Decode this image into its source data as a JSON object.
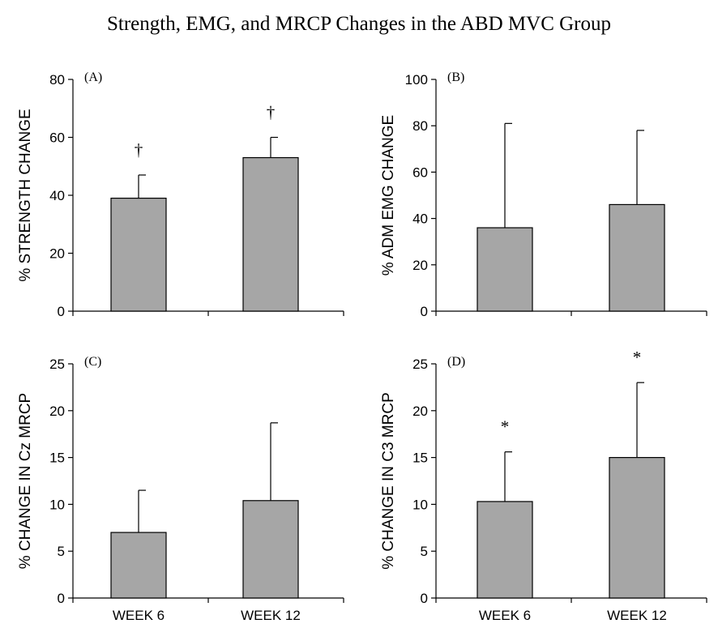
{
  "figure_title": "Strength, EMG, and MRCP Changes in the ABD MVC Group",
  "colors": {
    "bar_fill": "#a6a6a6",
    "bar_stroke": "#000000",
    "axis": "#000000"
  },
  "chart_data": [
    {
      "type": "bar",
      "panel_label": "(A)",
      "ylabel": "% STRENGTH CHANGE",
      "categories": [
        "WEEK 6",
        "WEEK 12"
      ],
      "values": [
        39,
        53
      ],
      "error_upper": [
        47,
        60
      ],
      "significance": [
        "†",
        "†"
      ],
      "ylim": [
        0,
        80
      ],
      "yticks": [
        0,
        20,
        40,
        60,
        80
      ],
      "show_category_labels": false
    },
    {
      "type": "bar",
      "panel_label": "(B)",
      "ylabel": "% ADM EMG CHANGE",
      "categories": [
        "WEEK 6",
        "WEEK 12"
      ],
      "values": [
        36,
        46
      ],
      "error_upper": [
        81,
        78
      ],
      "significance": [
        "",
        ""
      ],
      "ylim": [
        0,
        100
      ],
      "yticks": [
        0,
        20,
        40,
        60,
        80,
        100
      ],
      "show_category_labels": false
    },
    {
      "type": "bar",
      "panel_label": "(C)",
      "ylabel": "% CHANGE IN Cz MRCP",
      "categories": [
        "WEEK 6",
        "WEEK 12"
      ],
      "values": [
        7,
        10.4
      ],
      "error_upper": [
        11.5,
        18.7
      ],
      "significance": [
        "",
        ""
      ],
      "ylim": [
        0,
        25
      ],
      "yticks": [
        0,
        5,
        10,
        15,
        20,
        25
      ],
      "show_category_labels": true
    },
    {
      "type": "bar",
      "panel_label": "(D)",
      "ylabel": "% CHANGE IN C3 MRCP",
      "categories": [
        "WEEK 6",
        "WEEK 12"
      ],
      "values": [
        10.3,
        15
      ],
      "error_upper": [
        15.6,
        23
      ],
      "significance": [
        "*",
        "*"
      ],
      "ylim": [
        0,
        25
      ],
      "yticks": [
        0,
        5,
        10,
        15,
        20,
        25
      ],
      "show_category_labels": true
    }
  ]
}
